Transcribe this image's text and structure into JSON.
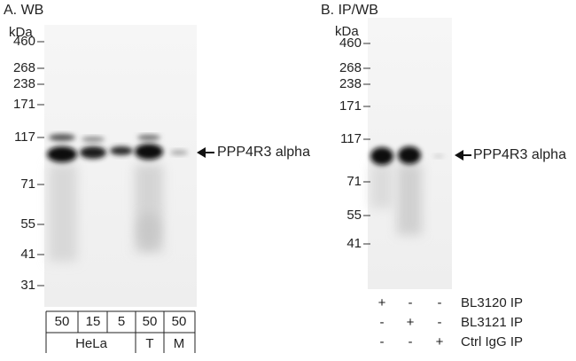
{
  "panels": [
    {
      "title": "A. WB",
      "unit": "kDa",
      "markers": [
        "460",
        "268",
        "238",
        "171",
        "117",
        "71",
        "55",
        "41",
        "31"
      ],
      "band_label": "PPP4R3 alpha",
      "loads": [
        "50",
        "15",
        "5",
        "50",
        "50"
      ],
      "groups": [
        "HeLa",
        "T",
        "M"
      ]
    },
    {
      "title": "B. IP/WB",
      "unit": "kDa",
      "markers": [
        "460",
        "268",
        "238",
        "171",
        "117",
        "71",
        "55",
        "41"
      ],
      "band_label": "PPP4R3 alpha",
      "ip_rows": [
        {
          "signs": [
            "+",
            "-",
            "-"
          ],
          "label": "BL3120 IP"
        },
        {
          "signs": [
            "-",
            "+",
            "-"
          ],
          "label": "BL3121 IP"
        },
        {
          "signs": [
            "-",
            "-",
            "+"
          ],
          "label": "Ctrl IgG IP"
        }
      ]
    }
  ]
}
